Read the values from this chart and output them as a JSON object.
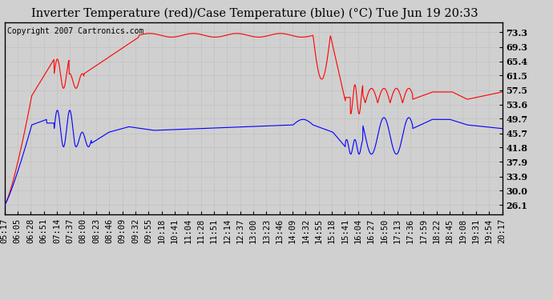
{
  "title": "Inverter Temperature (red)/Case Temperature (blue) (°C) Tue Jun 19 20:33",
  "copyright": "Copyright 2007 Cartronics.com",
  "background_color": "#d0d0d0",
  "plot_bg_color": "#d0d0d0",
  "y_ticks": [
    26.1,
    30.0,
    33.9,
    37.9,
    41.8,
    45.7,
    49.7,
    53.6,
    57.5,
    61.5,
    65.4,
    69.3,
    73.3
  ],
  "ylim": [
    23.5,
    76.0
  ],
  "x_labels": [
    "05:17",
    "06:05",
    "06:28",
    "06:51",
    "07:14",
    "07:37",
    "08:00",
    "08:23",
    "08:46",
    "09:09",
    "09:32",
    "09:55",
    "10:18",
    "10:41",
    "11:04",
    "11:28",
    "11:51",
    "12:14",
    "12:37",
    "13:00",
    "13:23",
    "13:46",
    "14:09",
    "14:32",
    "14:55",
    "15:18",
    "15:41",
    "16:04",
    "16:27",
    "16:50",
    "17:13",
    "17:36",
    "17:59",
    "18:22",
    "18:45",
    "19:08",
    "19:31",
    "19:54",
    "20:17"
  ],
  "red_color": "#ff0000",
  "blue_color": "#0000ff",
  "grid_color": "#b0b0b0",
  "border_color": "#000000",
  "title_fontsize": 10.5,
  "tick_fontsize": 7.5,
  "copyright_fontsize": 7
}
